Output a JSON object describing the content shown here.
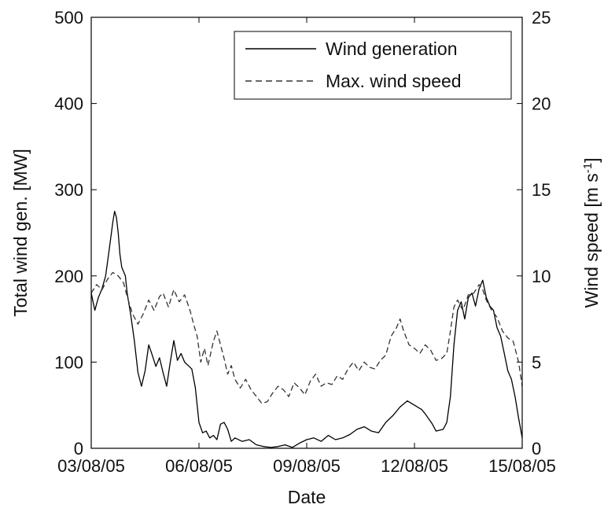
{
  "chart_data": {
    "type": "line",
    "xlabel": "Date",
    "ylabel_left": "Total wind gen. [MW]",
    "ylabel_right_base": "Wind speed [m s",
    "ylabel_right_sup": "-1",
    "ylabel_right_close": "]",
    "x_tick_labels": [
      "03/08/05",
      "06/08/05",
      "09/08/05",
      "12/08/05",
      "15/08/05"
    ],
    "x_tick_days": [
      0,
      3,
      6,
      9,
      12
    ],
    "xlim_days": [
      0,
      12
    ],
    "ylim_left": [
      0,
      500
    ],
    "ylim_right": [
      0,
      25
    ],
    "y_ticks_left": [
      "0",
      "100",
      "200",
      "300",
      "400",
      "500"
    ],
    "y_ticks_right": [
      "0",
      "5",
      "10",
      "15",
      "20",
      "25"
    ],
    "grid": false,
    "legend_position": "top-right",
    "series": [
      {
        "name": "Wind generation",
        "axis": "left",
        "style": "solid",
        "color": "#000000",
        "points": [
          [
            0.0,
            180
          ],
          [
            0.1,
            160
          ],
          [
            0.2,
            175
          ],
          [
            0.3,
            185
          ],
          [
            0.4,
            200
          ],
          [
            0.5,
            230
          ],
          [
            0.6,
            262
          ],
          [
            0.65,
            275
          ],
          [
            0.7,
            268
          ],
          [
            0.75,
            250
          ],
          [
            0.8,
            225
          ],
          [
            0.85,
            210
          ],
          [
            0.95,
            200
          ],
          [
            1.0,
            180
          ],
          [
            1.1,
            155
          ],
          [
            1.2,
            125
          ],
          [
            1.3,
            88
          ],
          [
            1.4,
            72
          ],
          [
            1.5,
            90
          ],
          [
            1.6,
            120
          ],
          [
            1.7,
            108
          ],
          [
            1.8,
            95
          ],
          [
            1.9,
            105
          ],
          [
            2.0,
            88
          ],
          [
            2.1,
            72
          ],
          [
            2.2,
            100
          ],
          [
            2.3,
            125
          ],
          [
            2.4,
            102
          ],
          [
            2.5,
            110
          ],
          [
            2.6,
            100
          ],
          [
            2.7,
            96
          ],
          [
            2.8,
            92
          ],
          [
            2.9,
            70
          ],
          [
            3.0,
            30
          ],
          [
            3.1,
            18
          ],
          [
            3.2,
            20
          ],
          [
            3.3,
            12
          ],
          [
            3.4,
            15
          ],
          [
            3.5,
            10
          ],
          [
            3.6,
            28
          ],
          [
            3.7,
            30
          ],
          [
            3.8,
            22
          ],
          [
            3.9,
            8
          ],
          [
            4.0,
            12
          ],
          [
            4.2,
            8
          ],
          [
            4.4,
            10
          ],
          [
            4.6,
            4
          ],
          [
            4.8,
            2
          ],
          [
            5.0,
            1
          ],
          [
            5.2,
            2
          ],
          [
            5.4,
            4
          ],
          [
            5.6,
            1
          ],
          [
            5.8,
            6
          ],
          [
            6.0,
            10
          ],
          [
            6.2,
            12
          ],
          [
            6.4,
            8
          ],
          [
            6.6,
            15
          ],
          [
            6.8,
            10
          ],
          [
            7.0,
            12
          ],
          [
            7.2,
            16
          ],
          [
            7.4,
            22
          ],
          [
            7.6,
            25
          ],
          [
            7.8,
            20
          ],
          [
            8.0,
            18
          ],
          [
            8.2,
            30
          ],
          [
            8.4,
            38
          ],
          [
            8.6,
            48
          ],
          [
            8.8,
            55
          ],
          [
            9.0,
            50
          ],
          [
            9.2,
            45
          ],
          [
            9.3,
            40
          ],
          [
            9.4,
            34
          ],
          [
            9.5,
            28
          ],
          [
            9.6,
            20
          ],
          [
            9.8,
            22
          ],
          [
            9.9,
            30
          ],
          [
            10.0,
            60
          ],
          [
            10.1,
            120
          ],
          [
            10.2,
            160
          ],
          [
            10.3,
            170
          ],
          [
            10.4,
            150
          ],
          [
            10.5,
            175
          ],
          [
            10.6,
            180
          ],
          [
            10.7,
            165
          ],
          [
            10.8,
            185
          ],
          [
            10.9,
            195
          ],
          [
            11.0,
            175
          ],
          [
            11.1,
            165
          ],
          [
            11.2,
            160
          ],
          [
            11.3,
            140
          ],
          [
            11.4,
            130
          ],
          [
            11.5,
            110
          ],
          [
            11.6,
            90
          ],
          [
            11.7,
            80
          ],
          [
            11.8,
            60
          ],
          [
            11.9,
            35
          ],
          [
            12.0,
            12
          ]
        ]
      },
      {
        "name": "Max. wind speed",
        "axis": "right",
        "style": "dashed",
        "color": "#333333",
        "points": [
          [
            0.0,
            9.0
          ],
          [
            0.15,
            9.5
          ],
          [
            0.3,
            9.2
          ],
          [
            0.45,
            9.8
          ],
          [
            0.6,
            10.2
          ],
          [
            0.75,
            10.0
          ],
          [
            0.9,
            9.6
          ],
          [
            1.0,
            8.8
          ],
          [
            1.15,
            7.8
          ],
          [
            1.3,
            7.2
          ],
          [
            1.45,
            7.8
          ],
          [
            1.6,
            8.6
          ],
          [
            1.75,
            8.0
          ],
          [
            1.9,
            8.8
          ],
          [
            2.0,
            9.0
          ],
          [
            2.15,
            8.2
          ],
          [
            2.3,
            9.2
          ],
          [
            2.45,
            8.5
          ],
          [
            2.6,
            8.9
          ],
          [
            2.75,
            8.0
          ],
          [
            2.85,
            7.2
          ],
          [
            2.95,
            6.5
          ],
          [
            3.05,
            5.0
          ],
          [
            3.15,
            5.8
          ],
          [
            3.25,
            4.8
          ],
          [
            3.4,
            6.2
          ],
          [
            3.5,
            6.8
          ],
          [
            3.6,
            6.0
          ],
          [
            3.7,
            5.2
          ],
          [
            3.8,
            4.3
          ],
          [
            3.9,
            4.8
          ],
          [
            4.0,
            4.0
          ],
          [
            4.15,
            3.5
          ],
          [
            4.3,
            4.0
          ],
          [
            4.45,
            3.4
          ],
          [
            4.6,
            3.0
          ],
          [
            4.75,
            2.6
          ],
          [
            4.9,
            2.7
          ],
          [
            5.05,
            3.2
          ],
          [
            5.2,
            3.6
          ],
          [
            5.35,
            3.4
          ],
          [
            5.5,
            3.0
          ],
          [
            5.65,
            3.8
          ],
          [
            5.8,
            3.5
          ],
          [
            5.95,
            3.1
          ],
          [
            6.1,
            3.9
          ],
          [
            6.25,
            4.3
          ],
          [
            6.4,
            3.6
          ],
          [
            6.55,
            3.8
          ],
          [
            6.7,
            3.7
          ],
          [
            6.85,
            4.2
          ],
          [
            7.0,
            4.0
          ],
          [
            7.15,
            4.6
          ],
          [
            7.3,
            5.0
          ],
          [
            7.45,
            4.5
          ],
          [
            7.6,
            5.0
          ],
          [
            7.75,
            4.7
          ],
          [
            7.9,
            4.6
          ],
          [
            8.05,
            5.1
          ],
          [
            8.2,
            5.4
          ],
          [
            8.35,
            6.5
          ],
          [
            8.5,
            7.0
          ],
          [
            8.6,
            7.5
          ],
          [
            8.7,
            6.8
          ],
          [
            8.85,
            6.0
          ],
          [
            9.0,
            5.8
          ],
          [
            9.15,
            5.5
          ],
          [
            9.3,
            6.0
          ],
          [
            9.45,
            5.7
          ],
          [
            9.6,
            5.1
          ],
          [
            9.75,
            5.2
          ],
          [
            9.9,
            5.5
          ],
          [
            10.0,
            6.8
          ],
          [
            10.1,
            8.2
          ],
          [
            10.2,
            8.6
          ],
          [
            10.35,
            8.0
          ],
          [
            10.5,
            8.9
          ],
          [
            10.65,
            9.0
          ],
          [
            10.8,
            9.5
          ],
          [
            10.9,
            9.2
          ],
          [
            11.0,
            8.6
          ],
          [
            11.15,
            8.0
          ],
          [
            11.3,
            7.6
          ],
          [
            11.45,
            6.8
          ],
          [
            11.6,
            6.4
          ],
          [
            11.75,
            6.2
          ],
          [
            11.9,
            5.0
          ],
          [
            12.0,
            3.6
          ]
        ]
      }
    ]
  }
}
